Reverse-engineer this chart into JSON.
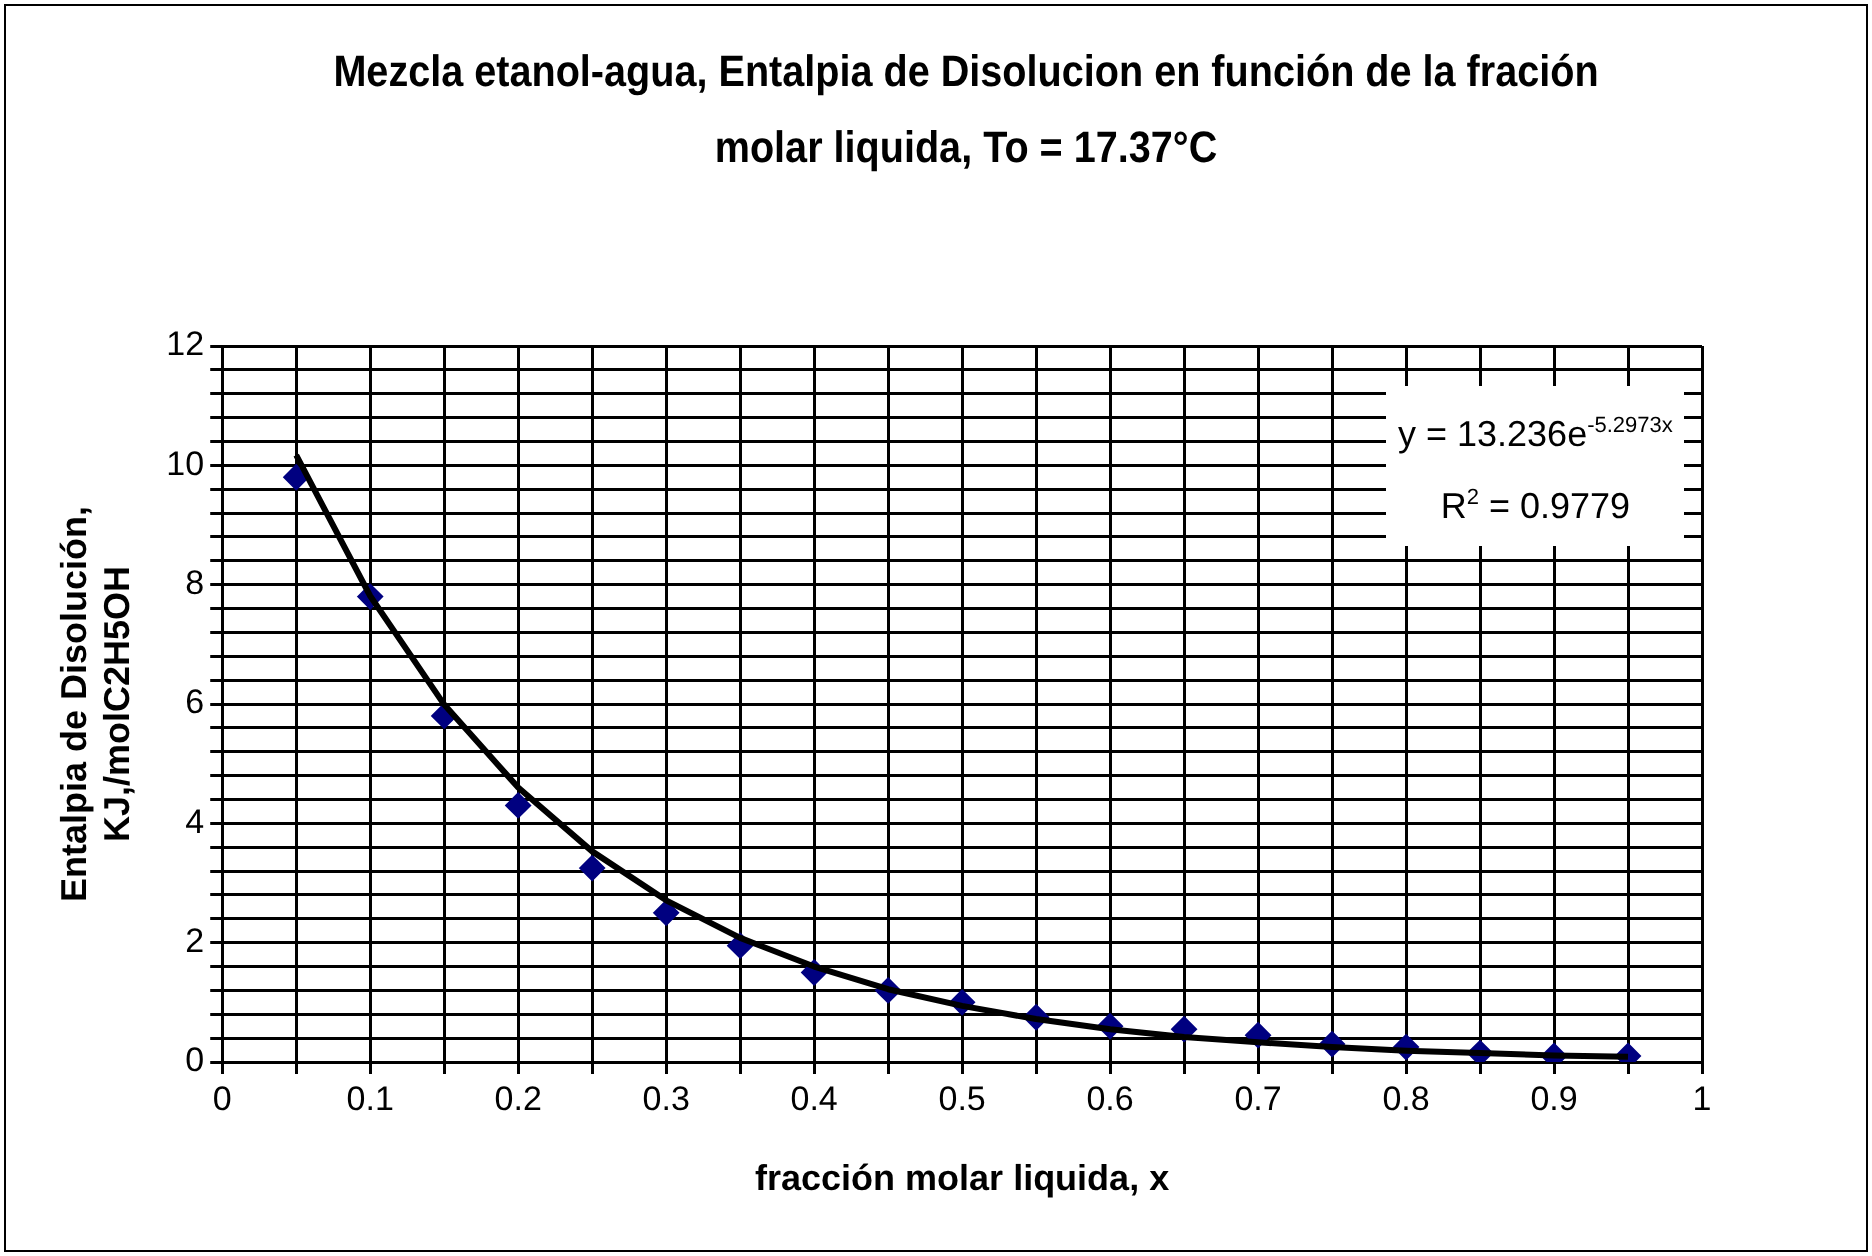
{
  "chart_data": {
    "type": "scatter",
    "title": "Mezcla etanol-agua, Entalpia de Disolucion en función de la fración molar liquida, To =  17.37°C",
    "xlabel": "fracción molar liquida, x",
    "ylabel": "Entalpia de Disolución, KJ,/molC2H5OH",
    "x": [
      0.05,
      0.1,
      0.15,
      0.2,
      0.25,
      0.3,
      0.35,
      0.4,
      0.45,
      0.5,
      0.55,
      0.6,
      0.65,
      0.7,
      0.75,
      0.8,
      0.85,
      0.9,
      0.95
    ],
    "series": [
      {
        "color": "#000080",
        "marker": "diamond",
        "values": [
          9.8,
          7.8,
          5.8,
          4.3,
          3.25,
          2.5,
          1.95,
          1.5,
          1.2,
          1.0,
          0.75,
          0.6,
          0.55,
          0.45,
          0.3,
          0.25,
          0.15,
          0.1,
          0.1
        ]
      },
      {
        "type": "line",
        "color": "#000000",
        "marker": "none",
        "line_style": "solid",
        "values": [
          10.17,
          7.81,
          5.99,
          4.6,
          3.53,
          2.71,
          2.08,
          1.6,
          1.22,
          0.94,
          0.72,
          0.55,
          0.42,
          0.33,
          0.25,
          0.19,
          0.15,
          0.11,
          0.09
        ]
      }
    ],
    "annotations": [
      "y = 13.236e$^{-5.2973x}$",
      "R$^{2}$ = 0.9779"
    ],
    "xlim": [
      0,
      1
    ],
    "xticks": [
      0,
      {
        "value": 0.05,
        "label": null
      },
      0.1,
      {
        "value": 0.15,
        "label": null
      },
      0.2,
      {
        "value": 0.25,
        "label": null
      },
      0.3,
      {
        "value": 0.35,
        "label": null
      },
      0.4,
      {
        "value": 0.45,
        "label": null
      },
      0.5,
      {
        "value": 0.55,
        "label": null
      },
      0.6,
      {
        "value": 0.65,
        "label": null
      },
      0.7,
      {
        "value": 0.75,
        "label": null
      },
      0.8,
      {
        "value": 0.85,
        "label": null
      },
      0.9,
      {
        "value": 0.95,
        "label": null
      },
      1
    ],
    "ylim": [
      0,
      12
    ],
    "yticks": [
      0,
      {
        "value": 0.4,
        "label": null
      },
      {
        "value": 0.8,
        "label": null
      },
      {
        "value": 1.2,
        "label": null
      },
      {
        "value": 1.6,
        "label": null
      },
      2,
      {
        "value": 2.4,
        "label": null
      },
      {
        "value": 2.8,
        "label": null
      },
      {
        "value": 3.2,
        "label": null
      },
      {
        "value": 3.6,
        "label": null
      },
      4,
      {
        "value": 4.4,
        "label": null
      },
      {
        "value": 4.8,
        "label": null
      },
      {
        "value": 5.2,
        "label": null
      },
      {
        "value": 5.6,
        "label": null
      },
      6,
      {
        "value": 6.4,
        "label": null
      },
      {
        "value": 6.8,
        "label": null
      },
      {
        "value": 7.2,
        "label": null
      },
      {
        "value": 7.6,
        "label": null
      },
      8,
      {
        "value": 8.4,
        "label": null
      },
      {
        "value": 8.8,
        "label": null
      },
      {
        "value": 9.2,
        "label": null
      },
      {
        "value": 9.6,
        "label": null
      },
      10,
      {
        "value": 10.4,
        "label": null
      },
      {
        "value": 10.8,
        "label": null
      },
      {
        "value": 11.2,
        "label": null
      },
      {
        "value": 11.6,
        "label": null
      },
      12
    ],
    "grid": true,
    "legend": false
  }
}
